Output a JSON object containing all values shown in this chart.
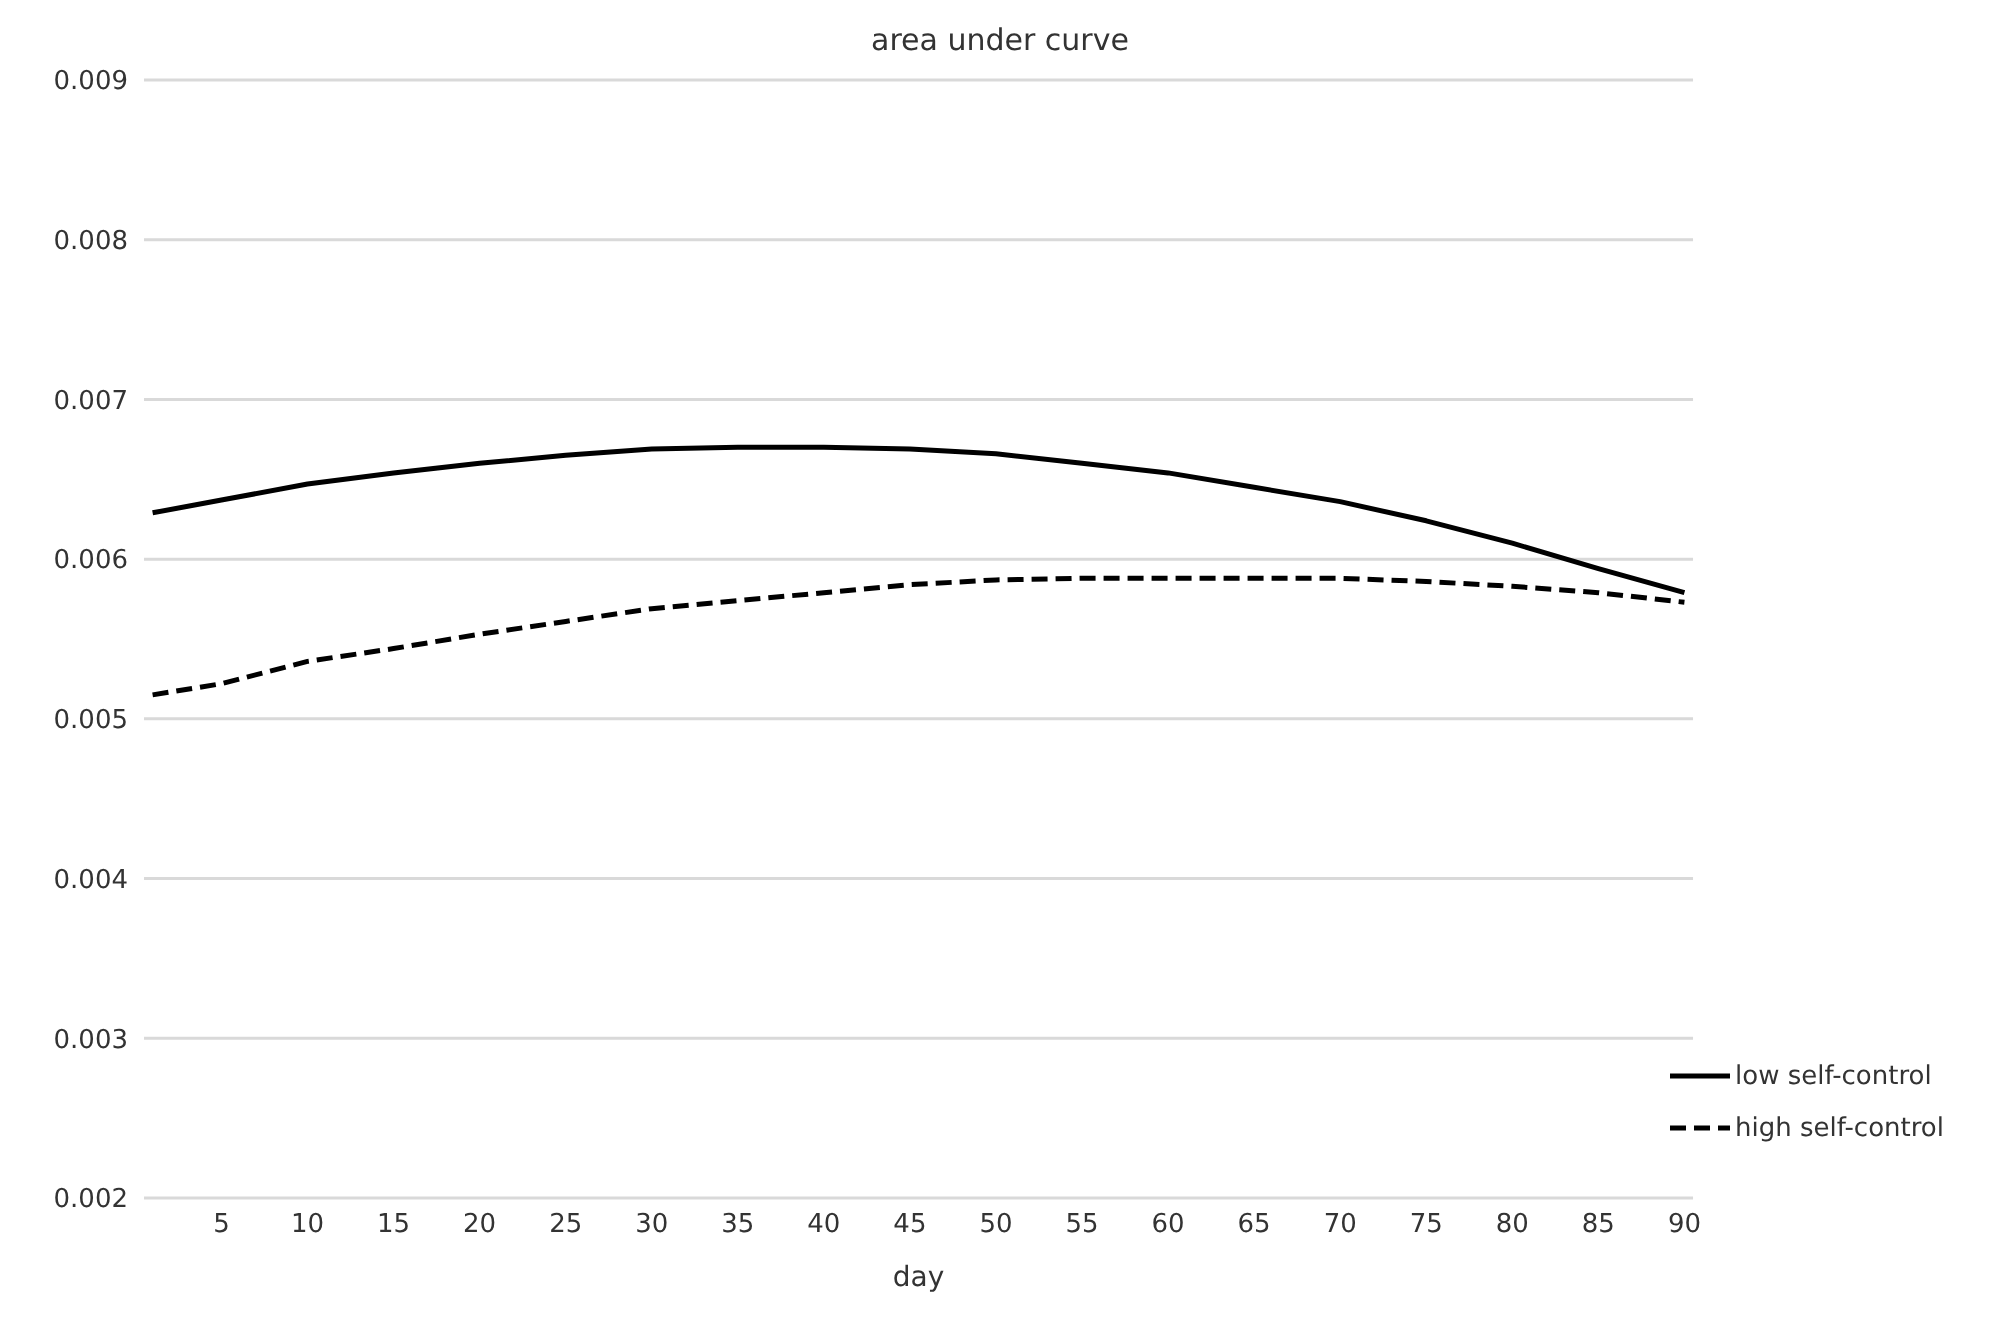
{
  "chart_data": {
    "type": "line",
    "title": "area under curve",
    "xlabel": "day",
    "x": [
      1,
      5,
      10,
      15,
      20,
      25,
      30,
      35,
      40,
      45,
      50,
      55,
      60,
      65,
      70,
      75,
      80,
      85,
      90
    ],
    "xlim": [
      0.5,
      90.5
    ],
    "xticks": [
      5,
      10,
      15,
      20,
      25,
      30,
      35,
      40,
      45,
      50,
      55,
      60,
      65,
      70,
      75,
      80,
      85,
      90
    ],
    "ylim": [
      0.002,
      0.009
    ],
    "yticks": [
      0.002,
      0.003,
      0.004,
      0.005,
      0.006,
      0.007,
      0.008,
      0.009
    ],
    "grid": "y",
    "legend": "bottom right",
    "marker": "none",
    "series": [
      {
        "name": "low self-control",
        "color": "#000000",
        "line_style": "solid",
        "values": [
          0.00629,
          0.00637,
          0.00647,
          0.00654,
          0.0066,
          0.00665,
          0.00669,
          0.0067,
          0.0067,
          0.00669,
          0.00666,
          0.0066,
          0.00654,
          0.00645,
          0.00636,
          0.00624,
          0.0061,
          0.00594,
          0.00579
        ]
      },
      {
        "name": "high self-control",
        "color": "#000000",
        "line_style": "dashed",
        "values": [
          0.00515,
          0.00522,
          0.00536,
          0.00544,
          0.00553,
          0.00561,
          0.00569,
          0.00574,
          0.00579,
          0.00584,
          0.00587,
          0.00588,
          0.00588,
          0.00588,
          0.00588,
          0.00586,
          0.00583,
          0.00579,
          0.00573
        ]
      }
    ]
  }
}
